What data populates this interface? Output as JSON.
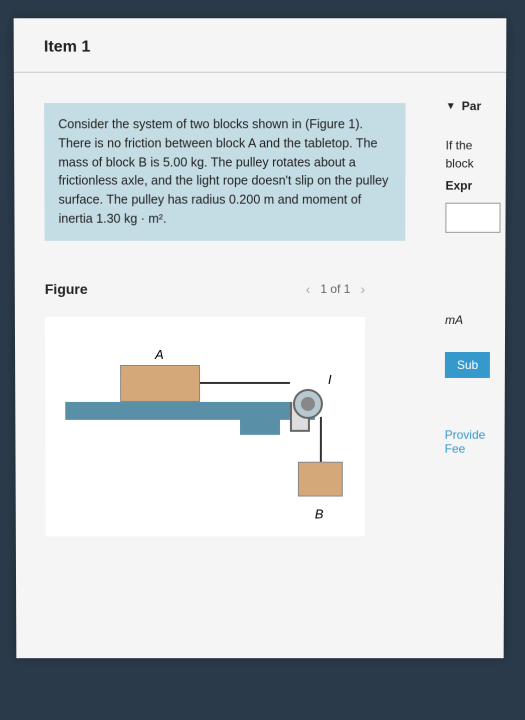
{
  "item_header": "Item 1",
  "problem_text": "Consider the system of two blocks shown in (Figure 1). There is no friction between block A and the tabletop. The mass of block B is 5.00 kg. The pulley rotates about a frictionless axle, and the light rope doesn't slip on the pulley surface. The pulley has radius 0.200 m and moment of inertia 1.30 kg · m².",
  "side": {
    "part_label": "Par",
    "line1": "If the",
    "line2": "block",
    "expr": "Expr",
    "ma": "mA",
    "submit": "Sub",
    "provide": "Provide Fee"
  },
  "figure": {
    "label": "Figure",
    "nav_text": "1 of 1",
    "label_a": "A",
    "label_b": "B",
    "label_pulley": "I"
  },
  "colors": {
    "problem_bg": "#c4dce4",
    "block_fill": "#d4a878",
    "table_fill": "#5a8fa8",
    "submit_bg": "#3699cc",
    "link_color": "#3699cc"
  }
}
